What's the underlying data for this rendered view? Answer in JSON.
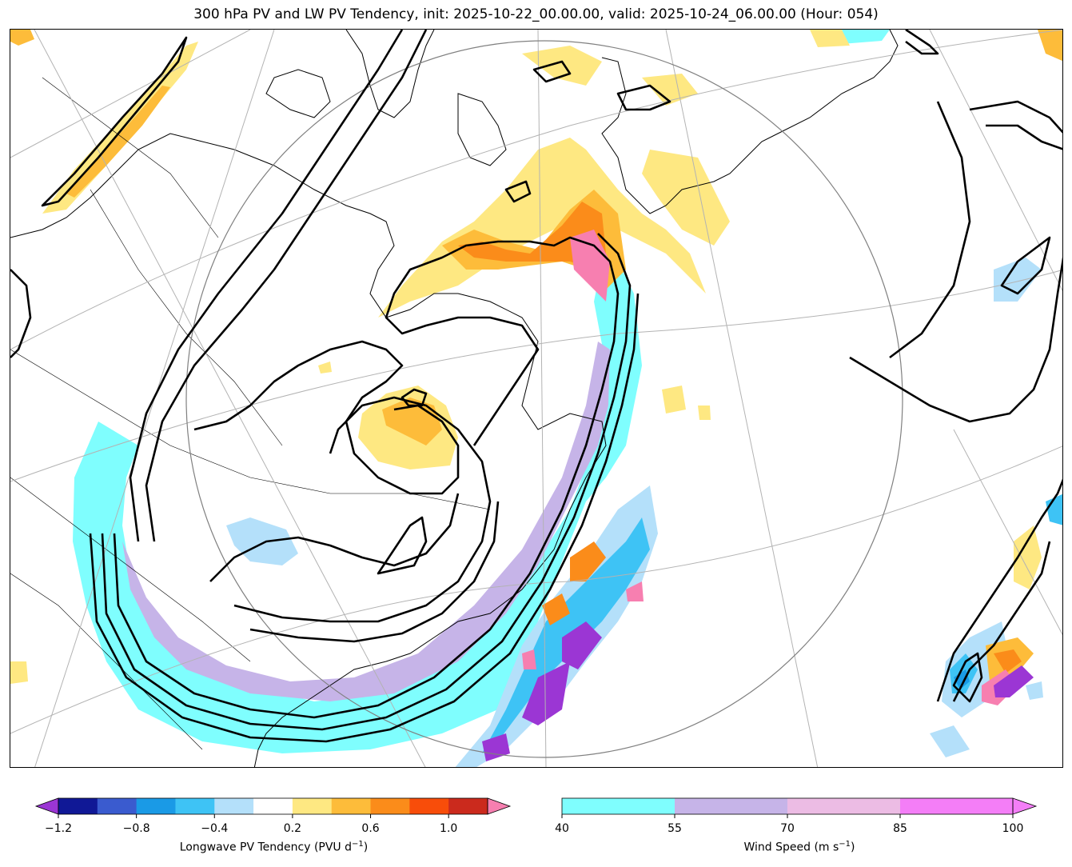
{
  "title": "300 hPa PV and LW PV Tendency, init: 2025-10-22_00.00.00, valid: 2025-10-24_06.00.00 (Hour: 054)",
  "colorbars": {
    "pv_tendency": {
      "label": "Longwave PV Tendency (PVU d",
      "label_sup": "−1",
      "label_end": ")",
      "bounds": [
        -1.3,
        -1.2,
        -1.1,
        -1.0,
        -0.9,
        -0.8,
        -0.7,
        -0.6,
        -0.5,
        -0.4,
        -0.3,
        -0.2,
        0.2,
        0.3,
        0.4,
        0.5,
        0.6,
        0.7,
        0.8,
        0.9,
        1.0,
        1.1,
        1.2
      ],
      "levels": [
        -1.2,
        -1.0,
        -0.8,
        -0.6,
        -0.4,
        -0.2,
        0.2,
        0.4,
        0.6,
        0.8,
        1.0,
        1.2
      ],
      "colors": [
        "#101896",
        "#3a5bcf",
        "#1a9ae6",
        "#3ec3f5",
        "#b4e0fa",
        "#ffffff",
        "#fee882",
        "#fdbc3a",
        "#fb8c1a",
        "#f84d0a",
        "#cb2a1d"
      ],
      "under_color": "#9b36d4",
      "over_color": "#f77fb0",
      "ticks": [
        "−1.2",
        "−0.8",
        "−0.4",
        "0.2",
        "0.6",
        "1.0"
      ]
    },
    "wind_speed": {
      "label": "Wind Speed (m s",
      "label_sup": "−1",
      "label_end": ")",
      "levels": [
        40,
        55,
        70,
        85,
        100
      ],
      "colors": [
        "#7ffefe",
        "#c6b4e8",
        "#ecbce4",
        "#f47ef7"
      ],
      "ticks": [
        "40",
        "55",
        "70",
        "85",
        "100"
      ]
    }
  },
  "map_colors": {
    "contour": "#000000",
    "coast": "#000000",
    "graticule": "#b3b3b3",
    "domain_circle": "#808080",
    "wind_40": "#7ffefe",
    "wind_55": "#c6b4e8",
    "wind_85": "#f47ef7",
    "pvt_pos_low": "#fee882",
    "pvt_pos_mid": "#fdbc3a",
    "pvt_pos_high": "#fb8c1a",
    "pvt_pos_max": "#f84d0a",
    "pvt_over": "#f77fb0",
    "pvt_neg_low": "#b4e0fa",
    "pvt_neg_mid": "#3ec3f5",
    "pvt_neg_high": "#1a9ae6",
    "pvt_neg_max": "#3a5bcf",
    "pvt_under": "#9b36d4"
  }
}
